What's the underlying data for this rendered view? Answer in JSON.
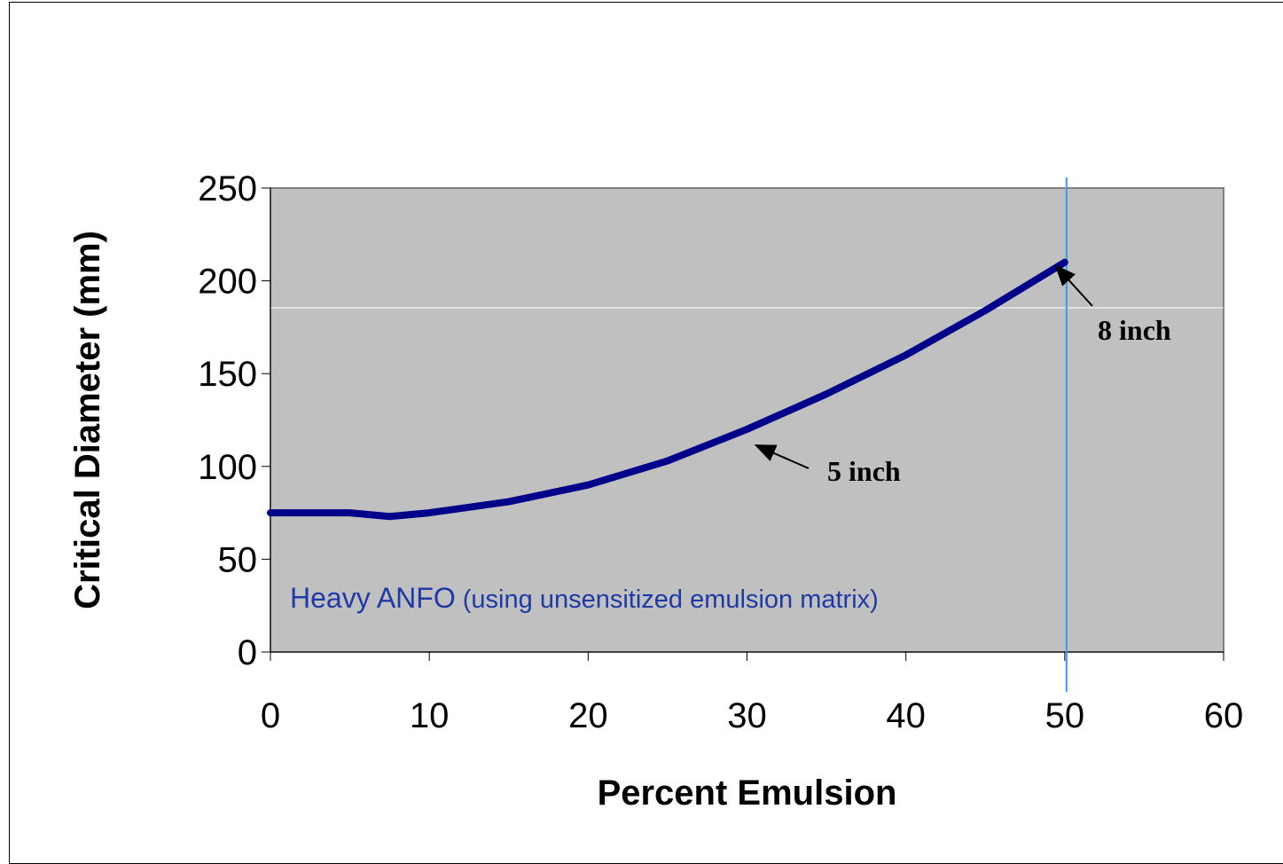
{
  "chart_data": {
    "type": "line",
    "xlabel": "Percent Emulsion",
    "ylabel": "Critical Diameter (mm)",
    "xlim": [
      0,
      60
    ],
    "ylim": [
      0,
      250
    ],
    "x_ticks": [
      "0",
      "10",
      "20",
      "30",
      "40",
      "50",
      "60"
    ],
    "y_ticks": [
      "0",
      "50",
      "100",
      "150",
      "200",
      "250"
    ],
    "series": [
      {
        "name": "",
        "color": "#00008b",
        "x": [
          0,
          5,
          7.5,
          10,
          15,
          20,
          25,
          30,
          35,
          40,
          45,
          50
        ],
        "y": [
          75,
          75,
          73,
          75,
          81,
          90,
          103,
          120,
          139,
          160,
          184,
          210
        ]
      }
    ],
    "reference_line": {
      "x": 50,
      "color": "#3d9be9"
    },
    "plot_background": "#c0c0c0",
    "annotations": [
      {
        "text": "8 inch",
        "point": [
          50,
          210
        ]
      },
      {
        "text": "5 inch",
        "point": [
          30,
          120
        ]
      }
    ],
    "series_label": {
      "main": "Heavy ANFO",
      "sub": " (using unsensitized emulsion matrix)"
    }
  }
}
